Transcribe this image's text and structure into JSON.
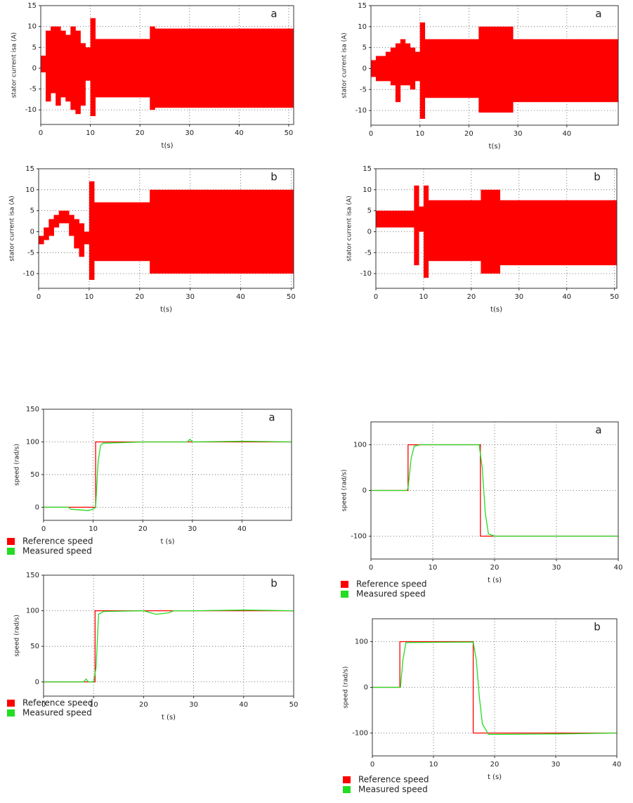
{
  "chart_data": [
    {
      "type": "band",
      "annotation": "a",
      "x_label": "t(s)",
      "y_label": "stator current isa (A)",
      "color": "#ff0000",
      "xlim": [
        0,
        51
      ],
      "xticks": [
        0,
        10,
        20,
        30,
        40,
        50
      ],
      "ylim": [
        -13.5,
        15
      ],
      "yticks": [
        15,
        10,
        5,
        0,
        -5,
        -10
      ],
      "grid": true,
      "x": [
        0,
        1,
        2,
        3,
        4,
        5,
        6,
        7,
        8,
        9,
        10,
        11,
        12,
        13,
        14,
        15,
        16,
        17,
        18,
        19,
        20,
        21,
        22,
        23,
        24,
        25,
        26,
        27,
        28,
        29,
        30,
        31,
        32,
        33,
        34,
        35,
        36,
        37,
        38,
        39,
        40,
        41,
        42,
        43,
        44,
        45,
        46,
        47,
        48,
        49,
        50
      ],
      "upper": [
        3,
        9,
        10,
        10,
        9,
        8,
        10,
        9,
        6,
        5,
        12,
        7,
        7,
        7,
        7,
        7,
        7,
        7,
        7,
        7,
        7,
        7,
        10,
        9.5,
        9.5,
        9.5,
        9.5,
        9.5,
        9.5,
        9.5,
        9.5,
        9.5,
        9.5,
        9.5,
        9.5,
        9.5,
        9.5,
        9.5,
        9.5,
        9.5,
        9.5,
        9.5,
        9.5,
        9.5,
        9.5,
        9.5,
        9.5,
        9.5,
        9.5,
        9.5,
        9.5
      ],
      "lower": [
        -1,
        -8,
        -6,
        -9,
        -7,
        -8,
        -10,
        -11,
        -9,
        -3,
        -11.5,
        -7,
        -7,
        -7,
        -7,
        -7,
        -7,
        -7,
        -7,
        -7,
        -7,
        -7,
        -10,
        -9.5,
        -9.5,
        -9.5,
        -9.5,
        -9.5,
        -9.5,
        -9.5,
        -9.5,
        -9.5,
        -9.5,
        -9.5,
        -9.5,
        -9.5,
        -9.5,
        -9.5,
        -9.5,
        -9.5,
        -9.5,
        -9.5,
        -9.5,
        -9.5,
        -9.5,
        -9.5,
        -9.5,
        -9.5,
        -9.5,
        -9.5,
        -9.5
      ]
    },
    {
      "type": "band",
      "annotation": "a",
      "x_label": "t(s)",
      "y_label": "stator current isa (A)",
      "color": "#ff0000",
      "xlim": [
        0,
        50.5
      ],
      "xticks": [
        0,
        10,
        20,
        30,
        40
      ],
      "ylim": [
        -13.5,
        15
      ],
      "yticks": [
        15,
        10,
        5,
        0,
        -5,
        -10
      ],
      "grid": true,
      "x": [
        0,
        1,
        2,
        3,
        4,
        5,
        6,
        7,
        8,
        9,
        10,
        11,
        12,
        13,
        14,
        15,
        16,
        17,
        18,
        19,
        20,
        21,
        22,
        23,
        24,
        25,
        26,
        27,
        28,
        29,
        30,
        31,
        32,
        33,
        34,
        35,
        36,
        37,
        38,
        39,
        40,
        41,
        42,
        43,
        44,
        45,
        46,
        47,
        48,
        49,
        50
      ],
      "upper": [
        2,
        3,
        3,
        4,
        5,
        6,
        7,
        6,
        5,
        4,
        11,
        7,
        7,
        7,
        7,
        7,
        7,
        7,
        7,
        7,
        7,
        7,
        10,
        10,
        10,
        10,
        10,
        10,
        10,
        7,
        7,
        7,
        7,
        7,
        7,
        7,
        7,
        7,
        7,
        7,
        7,
        7,
        7,
        7,
        7,
        7,
        7,
        7,
        7,
        7,
        7
      ],
      "lower": [
        -2,
        -3,
        -3,
        -3,
        -4,
        -8,
        -4,
        -4,
        -5,
        -3,
        -12,
        -7,
        -7,
        -7,
        -7,
        -7,
        -7,
        -7,
        -7,
        -7,
        -7,
        -7,
        -10.5,
        -10.5,
        -10.5,
        -10.5,
        -10.5,
        -10.5,
        -10.5,
        -8,
        -8,
        -8,
        -8,
        -8,
        -8,
        -8,
        -8,
        -8,
        -8,
        -8,
        -8,
        -8,
        -8,
        -8,
        -8,
        -8,
        -8,
        -8,
        -8,
        -8,
        -8
      ]
    },
    {
      "type": "band",
      "annotation": "b",
      "x_label": "t(s)",
      "y_label": "stator current isa (A)",
      "color": "#ff0000",
      "xlim": [
        0,
        50.5
      ],
      "xticks": [
        0,
        10,
        20,
        30,
        40,
        50
      ],
      "ylim": [
        -13.5,
        15
      ],
      "yticks": [
        15,
        10,
        5,
        0,
        -5,
        -10
      ],
      "grid": true,
      "x": [
        0,
        1,
        2,
        3,
        4,
        5,
        6,
        7,
        8,
        9,
        10,
        11,
        12,
        13,
        14,
        15,
        16,
        17,
        18,
        19,
        20,
        21,
        22,
        23,
        24,
        25,
        26,
        27,
        28,
        29,
        30,
        31,
        32,
        33,
        34,
        35,
        36,
        37,
        38,
        39,
        40,
        41,
        42,
        43,
        44,
        45,
        46,
        47,
        48,
        49,
        50
      ],
      "upper": [
        -1,
        1,
        3,
        4,
        5,
        5,
        4,
        3,
        2,
        0,
        12,
        7,
        7,
        7,
        7,
        7,
        7,
        7,
        7,
        7,
        7,
        7,
        10,
        10,
        10,
        10,
        10,
        10,
        10,
        10,
        10,
        10,
        10,
        10,
        10,
        10,
        10,
        10,
        10,
        10,
        10,
        10,
        10,
        10,
        10,
        10,
        10,
        10,
        10,
        10,
        10
      ],
      "lower": [
        -3,
        -2,
        -1,
        1,
        2,
        2,
        -1,
        -4,
        -6,
        -3,
        -11.5,
        -7,
        -7,
        -7,
        -7,
        -7,
        -7,
        -7,
        -7,
        -7,
        -7,
        -7,
        -10,
        -10,
        -10,
        -10,
        -10,
        -10,
        -10,
        -10,
        -10,
        -10,
        -10,
        -10,
        -10,
        -10,
        -10,
        -10,
        -10,
        -10,
        -10,
        -10,
        -10,
        -10,
        -10,
        -10,
        -10,
        -10,
        -10,
        -10,
        -10
      ]
    },
    {
      "type": "band",
      "annotation": "b",
      "x_label": "t(s)",
      "y_label": "stator current isa (A)",
      "color": "#ff0000",
      "xlim": [
        0,
        50.5
      ],
      "xticks": [
        0,
        10,
        20,
        30,
        40,
        50
      ],
      "ylim": [
        -13.5,
        15
      ],
      "yticks": [
        15,
        10,
        5,
        0,
        -5,
        -10
      ],
      "grid": true,
      "x": [
        0,
        1,
        2,
        3,
        4,
        5,
        6,
        7,
        8,
        9,
        10,
        11,
        12,
        13,
        14,
        15,
        16,
        17,
        18,
        19,
        20,
        21,
        22,
        23,
        24,
        25,
        26,
        27,
        28,
        29,
        30,
        31,
        32,
        33,
        34,
        35,
        36,
        37,
        38,
        39,
        40,
        41,
        42,
        43,
        44,
        45,
        46,
        47,
        48,
        49,
        50
      ],
      "upper": [
        5,
        5,
        5,
        5,
        5,
        5,
        5,
        5,
        11,
        6,
        11,
        7.5,
        7.5,
        7.5,
        7.5,
        7.5,
        7.5,
        7.5,
        7.5,
        7.5,
        7.5,
        7.5,
        10,
        10,
        10,
        10,
        7.5,
        7.5,
        7.5,
        7.5,
        7.5,
        7.5,
        7.5,
        7.5,
        7.5,
        7.5,
        7.5,
        7.5,
        7.5,
        7.5,
        7.5,
        7.5,
        7.5,
        7.5,
        7.5,
        7.5,
        7.5,
        7.5,
        7.5,
        7.5,
        7.5
      ],
      "lower": [
        1,
        1,
        1,
        1,
        1,
        1,
        1,
        1,
        -8,
        0,
        -11,
        -7,
        -7,
        -7,
        -7,
        -7,
        -7,
        -7,
        -7,
        -7,
        -7,
        -7,
        -10,
        -10,
        -10,
        -10,
        -8,
        -8,
        -8,
        -8,
        -8,
        -8,
        -8,
        -8,
        -8,
        -8,
        -8,
        -8,
        -8,
        -8,
        -8,
        -8,
        -8,
        -8,
        -8,
        -8,
        -8,
        -8,
        -8,
        -8,
        -8
      ]
    },
    {
      "type": "line",
      "annotation": "a",
      "x_label": "t (s)",
      "y_label": "speed (rad/s)",
      "xlim": [
        0,
        50
      ],
      "xticks": [
        0,
        10,
        20,
        30,
        40
      ],
      "ylim": [
        -20,
        150
      ],
      "yticks": [
        150,
        100,
        50,
        0
      ],
      "grid": true,
      "series": [
        {
          "name": "Reference speed",
          "color": "#ff0000",
          "x": [
            0,
            10.5,
            10.5,
            50
          ],
          "values": [
            0,
            0,
            100,
            100
          ]
        },
        {
          "name": "Measured speed",
          "color": "#22dd22",
          "x": [
            0,
            5,
            5.5,
            9,
            10,
            10.5,
            11,
            11.5,
            12,
            20,
            25,
            29,
            29.5,
            30,
            40,
            50
          ],
          "values": [
            0,
            0,
            -3,
            -5,
            -3,
            0,
            70,
            95,
            98,
            100,
            100,
            100,
            104,
            100,
            101,
            100
          ]
        }
      ]
    },
    {
      "type": "line",
      "annotation": "b",
      "x_label": "t (s)",
      "y_label": "speed (rad/s)",
      "xlim": [
        0,
        50
      ],
      "xticks": [
        0,
        10,
        20,
        30,
        40,
        50
      ],
      "ylim": [
        -20,
        150
      ],
      "yticks": [
        150,
        100,
        50,
        0
      ],
      "grid": true,
      "series": [
        {
          "name": "Reference speed",
          "color": "#ff0000",
          "x": [
            0,
            10.3,
            10.3,
            50
          ],
          "values": [
            0,
            0,
            100,
            100
          ]
        },
        {
          "name": "Measured speed",
          "color": "#22dd22",
          "x": [
            0,
            8,
            8.5,
            9,
            10,
            10.5,
            11,
            12,
            20,
            22,
            22.5,
            25,
            26,
            30,
            40,
            50
          ],
          "values": [
            0,
            0,
            4,
            0,
            0,
            20,
            95,
            99,
            100,
            96,
            95,
            97,
            100,
            100,
            101,
            100
          ]
        }
      ]
    },
    {
      "type": "line",
      "annotation": "a",
      "x_label": "t (s)",
      "y_label": "speed (rad/s)",
      "xlim": [
        0,
        40
      ],
      "xticks": [
        0,
        10,
        20,
        30,
        40
      ],
      "ylim": [
        -150,
        150
      ],
      "yticks": [
        100,
        0,
        -100
      ],
      "grid": true,
      "series": [
        {
          "name": "Reference speed",
          "color": "#ff0000",
          "x": [
            0,
            6,
            6,
            17.7,
            17.7,
            40
          ],
          "values": [
            0,
            0,
            100,
            100,
            -100,
            -100
          ]
        },
        {
          "name": "Measured speed",
          "color": "#22dd22",
          "x": [
            0,
            5.8,
            6,
            6.5,
            7,
            8,
            17.5,
            18,
            18.5,
            19,
            20,
            30,
            40
          ],
          "values": [
            0,
            0,
            5,
            70,
            97,
            100,
            100,
            50,
            -50,
            -95,
            -100,
            -100,
            -100
          ]
        }
      ]
    },
    {
      "type": "line",
      "annotation": "b",
      "x_label": "t (s)",
      "y_label": "speed (rad/s)",
      "xlim": [
        0,
        40
      ],
      "xticks": [
        0,
        10,
        20,
        30,
        40
      ],
      "ylim": [
        -150,
        150
      ],
      "yticks": [
        100,
        0,
        -100
      ],
      "grid": true,
      "series": [
        {
          "name": "Reference speed",
          "color": "#ff0000",
          "x": [
            0,
            4.5,
            4.5,
            16.5,
            16.5,
            40
          ],
          "values": [
            0,
            0,
            100,
            100,
            -100,
            -100
          ]
        },
        {
          "name": "Measured speed",
          "color": "#22dd22",
          "x": [
            0,
            4.6,
            5,
            5.5,
            16.5,
            17,
            17.5,
            18,
            19,
            20,
            30,
            40
          ],
          "values": [
            0,
            0,
            60,
            98,
            99,
            60,
            -20,
            -80,
            -103,
            -103,
            -102,
            -100
          ]
        }
      ]
    }
  ]
}
